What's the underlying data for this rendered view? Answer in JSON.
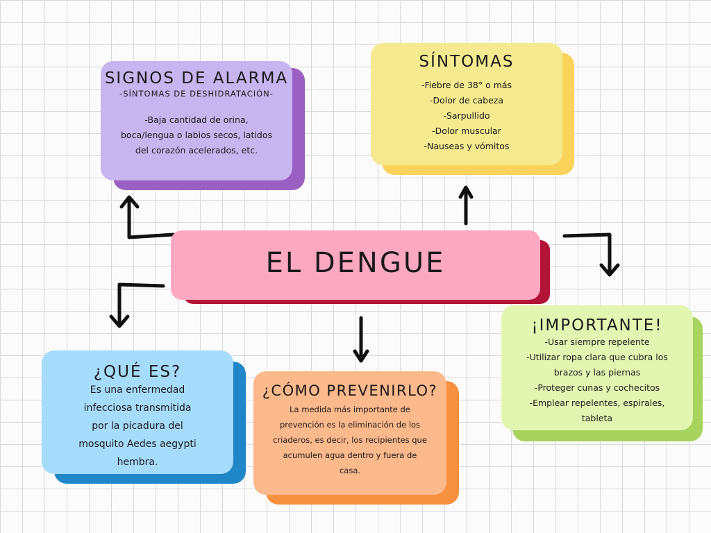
{
  "central": {
    "title": "EL DENGUE"
  },
  "signos": {
    "title": "SIGNOS DE ALARMA",
    "subtitle": "-SÍNTOMAS DE DESHIDRATACIÓN-",
    "lines": [
      "-Baja cantidad de orina,",
      "boca/lengua o labios secos, latidos",
      "del corazón acelerados, etc."
    ]
  },
  "sintomas": {
    "title": "SÍNTOMAS",
    "lines": [
      "-Fiebre de 38° o más",
      "-Dolor de cabeza",
      "-Sarpullido",
      "-Dolor muscular",
      "-Nauseas y vómitos"
    ]
  },
  "que_es": {
    "title": "¿QUÉ ES?",
    "lines": [
      "Es una enfermedad",
      "infecciosa transmitida",
      "por la picadura del",
      "mosquito Aedes aegypti",
      "hembra."
    ]
  },
  "prevenir": {
    "title": "¿CÓMO PREVENIRLO?",
    "lines": [
      "La medida más importante de",
      "prevención es la eliminación de los",
      "criaderos, es decir, los recipientes que",
      "acumulen agua dentro y fuera de",
      "casa."
    ]
  },
  "importante": {
    "title": "¡IMPORTANTE!",
    "lines": [
      "-Usar siempre repelente",
      "-Utilizar ropa clara que cubra los",
      "brazos y las piernas",
      "-Proteger cunas y cochecitos",
      "-Emplear repelentes, espirales,",
      "tableta"
    ]
  },
  "colors": {
    "central": "#fba8c0",
    "central_shadow": "#b11437",
    "signos": "#c7b5ef",
    "signos_shadow": "#9a5fc2",
    "sintomas": "#f5ea8f",
    "sintomas_shadow": "#fbd35a",
    "que_es": "#a6dcfb",
    "que_es_shadow": "#1f86c7",
    "prevenir": "#fcb98b",
    "prevenir_shadow": "#f8913f",
    "importante": "#e2f6b1",
    "importante_shadow": "#a8d35f"
  }
}
